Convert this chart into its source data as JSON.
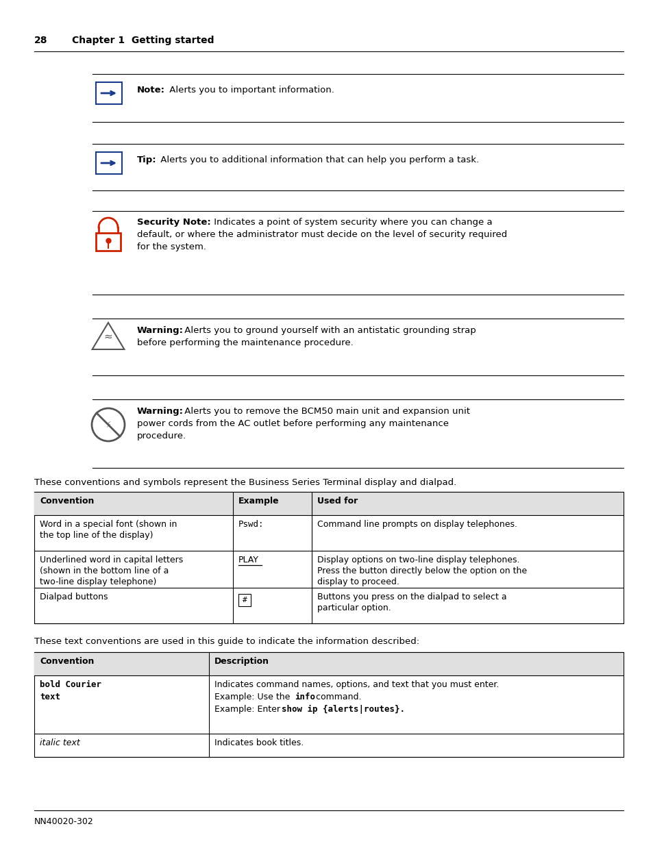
{
  "page_number": "28",
  "chapter": "Chapter 1  Getting started",
  "footer": "NN40020-302",
  "bg_color": "#ffffff"
}
